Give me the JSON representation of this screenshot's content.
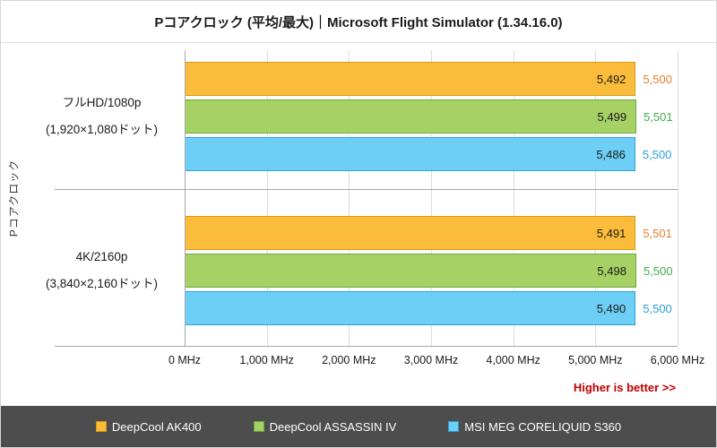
{
  "title": "Pコアクロック (平均/最大)｜Microsoft Flight Simulator (1.34.16.0)",
  "y_axis_title": "Pコアクロック",
  "higher_is_better": "Higher is better >>",
  "colors": {
    "grid": "#dcdcdc",
    "axis": "#a6a6a6",
    "legend_bg": "#4d4d4d",
    "note": "#c00000"
  },
  "series_styles": [
    {
      "name": "DeepCool AK400",
      "fill": "#fabc3a",
      "border": "#d79a10",
      "text": "#e87e2f"
    },
    {
      "name": "DeepCool ASSASSIN IV",
      "fill": "#a6d164",
      "border": "#6fa93c",
      "text": "#3fae49"
    },
    {
      "name": "MSI MEG CORELIQUID S360",
      "fill": "#6dcff5",
      "border": "#2aa3dc",
      "text": "#2b9fd9"
    }
  ],
  "legend": {
    "items": [
      {
        "label": "DeepCool AK400"
      },
      {
        "label": "DeepCool ASSASSIN IV"
      },
      {
        "label": "MSI MEG CORELIQUID S360"
      }
    ]
  },
  "chart_data": {
    "type": "bar",
    "orientation": "horizontal",
    "title": "Pコアクロック (平均/最大)｜Microsoft Flight Simulator (1.34.16.0)",
    "ylabel": "Pコアクロック",
    "xlabel_unit": "MHz",
    "xlim": [
      0,
      6000
    ],
    "grid": true,
    "legend_position": "bottom",
    "x_ticks": [
      {
        "value": 0,
        "label": "0 MHz"
      },
      {
        "value": 1000,
        "label": "1,000 MHz"
      },
      {
        "value": 2000,
        "label": "2,000 MHz"
      },
      {
        "value": 3000,
        "label": "3,000 MHz"
      },
      {
        "value": 4000,
        "label": "4,000 MHz"
      },
      {
        "value": 5000,
        "label": "5,000 MHz"
      },
      {
        "value": 6000,
        "label": "6,000 MHz"
      }
    ],
    "series_names": [
      "DeepCool AK400",
      "DeepCool ASSASSIN IV",
      "MSI MEG CORELIQUID S360"
    ],
    "groups": [
      {
        "label_lines": [
          "フルHD/1080p",
          "(1,920×1,080ドット)"
        ],
        "bars": [
          {
            "series": "DeepCool AK400",
            "avg": 5492,
            "max": 5500,
            "avg_label": "5,492",
            "max_label": "5,500"
          },
          {
            "series": "DeepCool ASSASSIN IV",
            "avg": 5499,
            "max": 5501,
            "avg_label": "5,499",
            "max_label": "5,501"
          },
          {
            "series": "MSI MEG CORELIQUID S360",
            "avg": 5486,
            "max": 5500,
            "avg_label": "5,486",
            "max_label": "5,500"
          }
        ]
      },
      {
        "label_lines": [
          "4K/2160p",
          "(3,840×2,160ドット)"
        ],
        "bars": [
          {
            "series": "DeepCool AK400",
            "avg": 5491,
            "max": 5501,
            "avg_label": "5,491",
            "max_label": "5,501"
          },
          {
            "series": "DeepCool ASSASSIN IV",
            "avg": 5498,
            "max": 5500,
            "avg_label": "5,498",
            "max_label": "5,500"
          },
          {
            "series": "MSI MEG CORELIQUID S360",
            "avg": 5490,
            "max": 5500,
            "avg_label": "5,490",
            "max_label": "5,500"
          }
        ]
      }
    ]
  }
}
